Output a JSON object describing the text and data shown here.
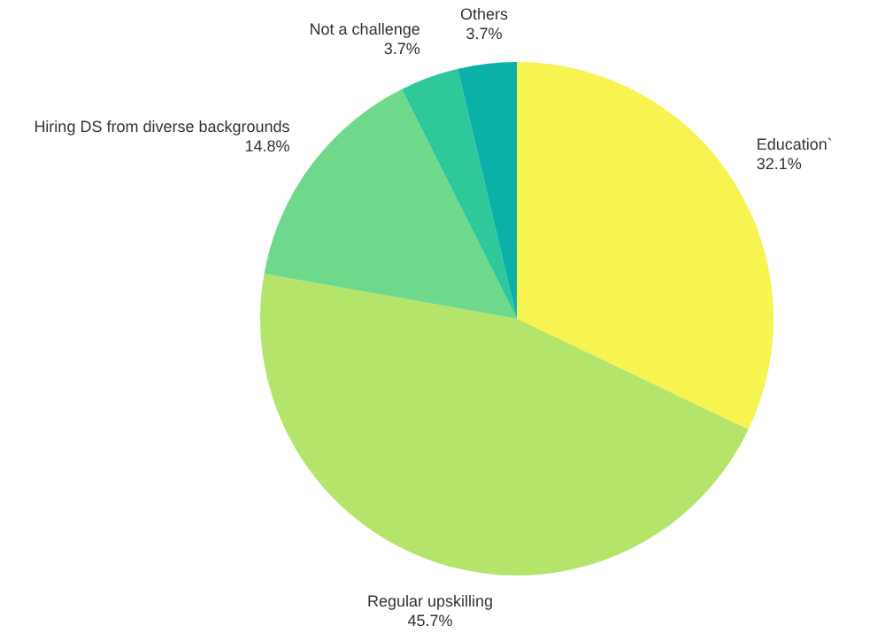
{
  "chart_data": {
    "type": "pie",
    "categories": [
      "Education`",
      "Regular upskilling",
      "Hiring DS from diverse backgrounds",
      "Not a challenge",
      "Others"
    ],
    "values": [
      32.1,
      45.7,
      14.8,
      3.7,
      3.7
    ],
    "value_labels": [
      "32.1%",
      "45.7%",
      "14.8%",
      "3.7%",
      "3.7%"
    ],
    "colors": [
      "#f7f351",
      "#b4e46a",
      "#6ed98a",
      "#2ec89a",
      "#0bb0a6"
    ]
  }
}
